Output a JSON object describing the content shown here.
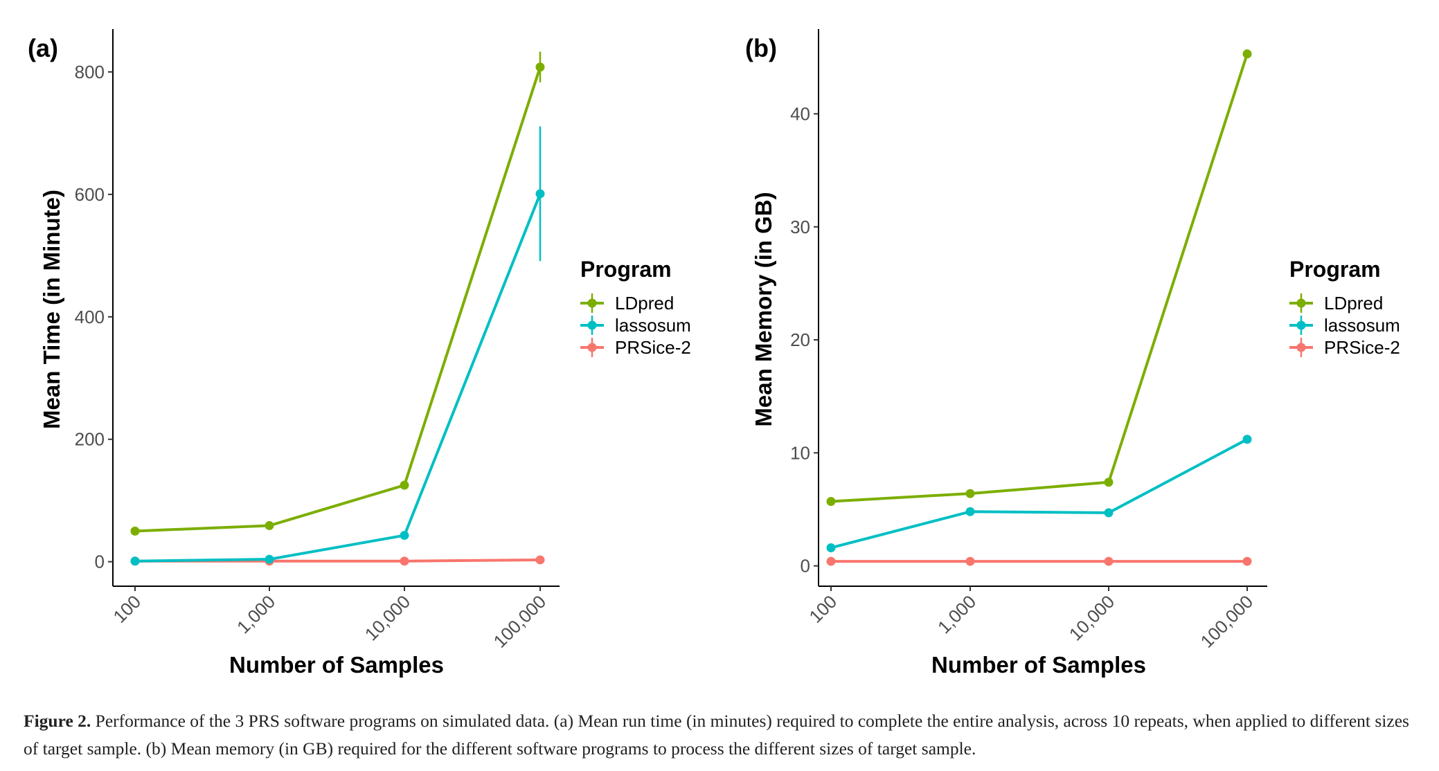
{
  "legend_title": "Program",
  "colors": {
    "LDpred": "#7cae00",
    "lassosum": "#00bfc4",
    "PRSice-2": "#f8766d"
  },
  "caption": {
    "label": "Figure 2.",
    "text": " Performance of the 3 PRS software programs on simulated data. (a) Mean run time (in minutes) required to complete the entire analysis, across 10 repeats, when applied to different sizes of target sample. (b) Mean memory (in GB) required for the different software programs to process the different sizes of target sample."
  },
  "chart_data": [
    {
      "panel_label": "(a)",
      "type": "line",
      "x_scale": "log10",
      "categories": [
        "100",
        "1,000",
        "10,000",
        "100,000"
      ],
      "x": [
        100,
        1000,
        10000,
        100000
      ],
      "xlabel": "Number of Samples",
      "ylabel": "Mean Time (in Minute)",
      "ylim": [
        -40,
        870
      ],
      "yticks": [
        0,
        200,
        400,
        600,
        800
      ],
      "grid": false,
      "legend_position": "right",
      "series": [
        {
          "name": "LDpred",
          "values": [
            50,
            59,
            125,
            808
          ],
          "error_low": [
            null,
            null,
            null,
            783
          ],
          "error_high": [
            null,
            null,
            null,
            833
          ]
        },
        {
          "name": "lassosum",
          "values": [
            1,
            4,
            43,
            601
          ],
          "error_low": [
            null,
            null,
            null,
            491
          ],
          "error_high": [
            null,
            null,
            null,
            711
          ]
        },
        {
          "name": "PRSice-2",
          "values": [
            1,
            1,
            1,
            3
          ],
          "error_low": [
            null,
            null,
            null,
            null
          ],
          "error_high": [
            null,
            null,
            null,
            null
          ]
        }
      ]
    },
    {
      "panel_label": "(b)",
      "type": "line",
      "x_scale": "log10",
      "categories": [
        "100",
        "1,000",
        "10,000",
        "100,000"
      ],
      "x": [
        100,
        1000,
        10000,
        100000
      ],
      "xlabel": "Number of Samples",
      "ylabel": "Mean Memory (in GB)",
      "ylim": [
        -1.8,
        47.5
      ],
      "yticks": [
        0,
        10,
        20,
        30,
        40
      ],
      "grid": false,
      "legend_position": "right",
      "series": [
        {
          "name": "LDpred",
          "values": [
            5.7,
            6.4,
            7.4,
            45.3
          ],
          "error_low": [
            null,
            null,
            null,
            null
          ],
          "error_high": [
            null,
            null,
            null,
            null
          ]
        },
        {
          "name": "lassosum",
          "values": [
            1.6,
            4.8,
            4.7,
            11.2
          ],
          "error_low": [
            null,
            null,
            null,
            null
          ],
          "error_high": [
            null,
            null,
            null,
            null
          ]
        },
        {
          "name": "PRSice-2",
          "values": [
            0.4,
            0.4,
            0.4,
            0.4
          ],
          "error_low": [
            null,
            null,
            null,
            null
          ],
          "error_high": [
            null,
            null,
            null,
            null
          ]
        }
      ]
    }
  ]
}
